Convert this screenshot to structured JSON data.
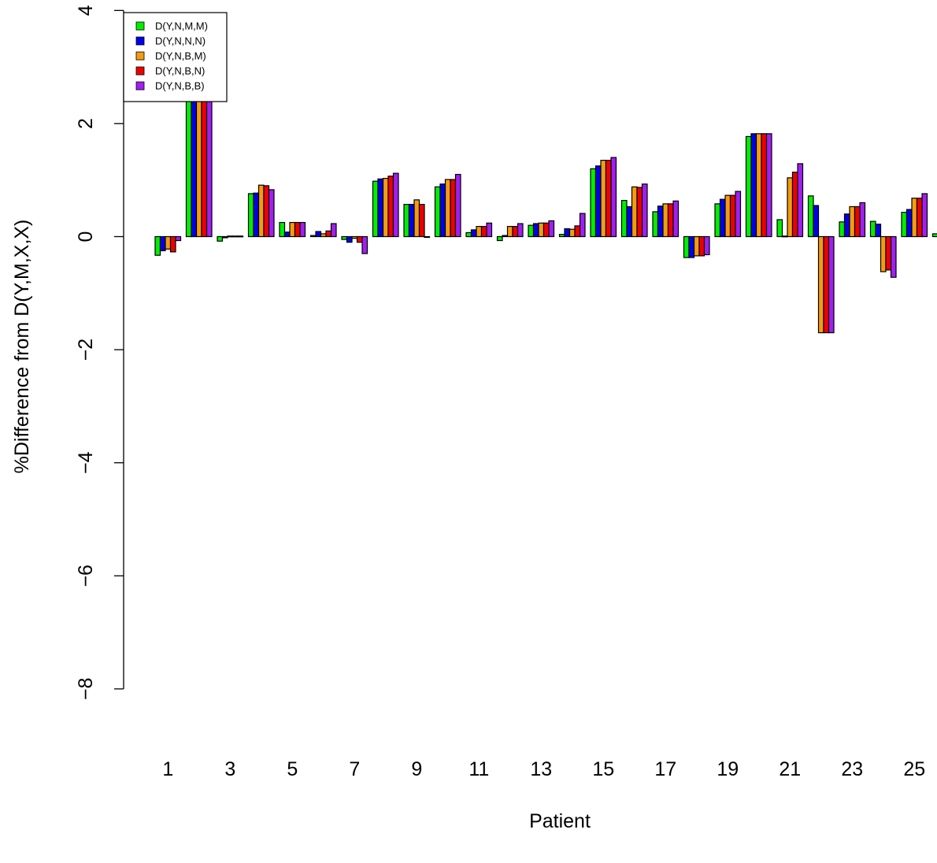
{
  "chart_data": {
    "type": "bar",
    "xlabel": "Patient",
    "ylabel": "%Difference from D(Y,M,X,X)",
    "ylim": [
      -8,
      4
    ],
    "yticks": [
      -8,
      -6,
      -4,
      -2,
      0,
      2,
      4
    ],
    "ytick_labels": [
      "−8",
      "−6",
      "−4",
      "−2",
      "0",
      "2",
      "4"
    ],
    "categories": [
      "1",
      "2",
      "3",
      "4",
      "5",
      "6",
      "7",
      "8",
      "9",
      "10",
      "11",
      "12",
      "13",
      "14",
      "15",
      "16",
      "17",
      "18",
      "19",
      "20",
      "21",
      "22",
      "23",
      "24",
      "25",
      "26"
    ],
    "xtick_labels": [
      "1",
      "3",
      "5",
      "7",
      "9",
      "11",
      "13",
      "15",
      "17",
      "19",
      "21",
      "23",
      "25"
    ],
    "legend": {
      "position": "top-left"
    },
    "series": [
      {
        "name": "D(Y,N,M,M)",
        "color": "#00ee00",
        "values": [
          -0.33,
          2.4,
          -0.08,
          0.76,
          0.25,
          0.02,
          -0.05,
          0.98,
          0.57,
          0.88,
          0.07,
          -0.07,
          0.2,
          0.04,
          1.2,
          0.64,
          0.44,
          -0.37,
          0.58,
          1.77,
          0.3,
          0.72,
          0.26,
          0.27,
          0.43,
          0.05
        ]
      },
      {
        "name": "D(Y,N,N,N)",
        "color": "#0000ee",
        "values": [
          -0.25,
          2.43,
          -0.02,
          0.77,
          0.08,
          0.09,
          -0.1,
          1.02,
          0.57,
          0.93,
          0.12,
          0.02,
          0.23,
          0.14,
          1.25,
          0.53,
          0.54,
          -0.37,
          0.66,
          1.82,
          0.01,
          0.55,
          0.4,
          0.22,
          0.48,
          0.02
        ]
      },
      {
        "name": "D(Y,N,B,M)",
        "color": "#f39c12",
        "values": [
          -0.22,
          2.49,
          0.01,
          0.91,
          0.25,
          0.05,
          -0.03,
          1.03,
          0.65,
          1.01,
          0.18,
          0.18,
          0.24,
          0.13,
          1.35,
          0.88,
          0.58,
          -0.34,
          0.73,
          1.82,
          1.04,
          -1.7,
          0.53,
          -0.62,
          0.68,
          0.05
        ]
      },
      {
        "name": "D(Y,N,B,N)",
        "color": "#ee0000",
        "values": [
          -0.27,
          2.5,
          0.01,
          0.9,
          0.25,
          0.1,
          -0.1,
          1.07,
          0.57,
          1.01,
          0.18,
          0.18,
          0.24,
          0.19,
          1.35,
          0.87,
          0.58,
          -0.34,
          0.73,
          1.82,
          1.14,
          -1.7,
          0.53,
          -0.59,
          0.68,
          0.05
        ]
      },
      {
        "name": "D(Y,N,B,B)",
        "color": "#a020f0",
        "values": [
          -0.07,
          2.58,
          0.01,
          0.83,
          0.25,
          0.23,
          -0.3,
          1.12,
          0.0,
          1.1,
          0.24,
          0.23,
          0.28,
          0.41,
          1.4,
          0.93,
          0.63,
          -0.32,
          0.8,
          1.82,
          1.29,
          -1.7,
          0.6,
          -0.72,
          0.76,
          0.06
        ]
      }
    ]
  }
}
